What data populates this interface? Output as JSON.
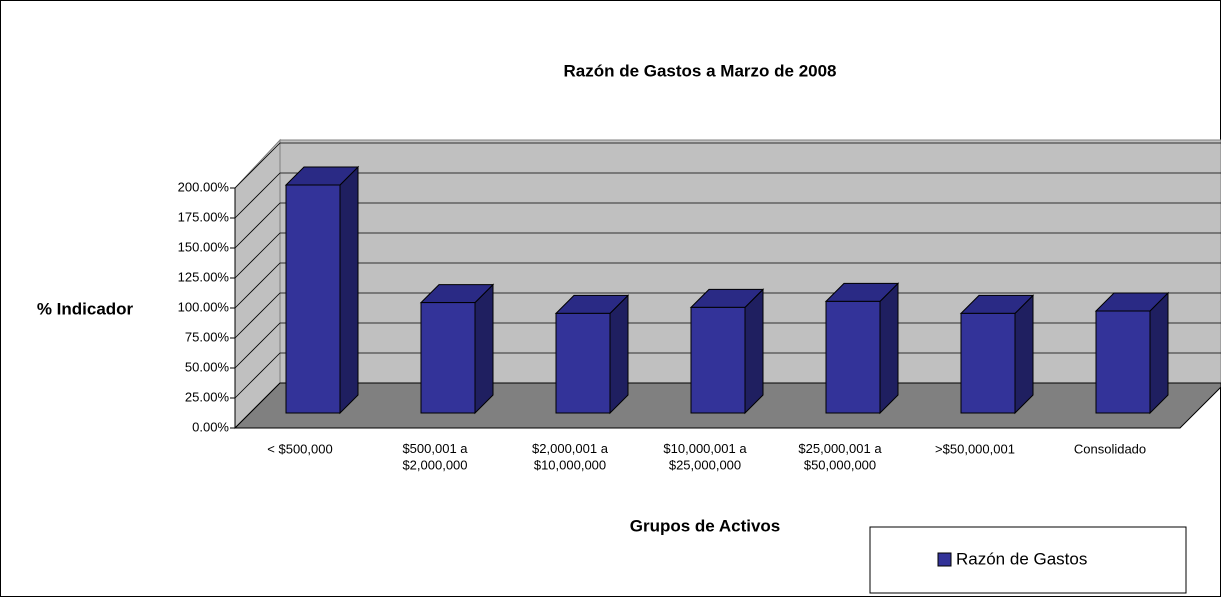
{
  "chart_data": {
    "type": "bar3d",
    "title": "Razón de Gastos a Marzo de 2008",
    "x_label": "Grupos de Activos",
    "y_label": "% Indicador",
    "categories": [
      "< $500,000",
      "$500,001 a\n$2,000,000",
      "$2,000,001 a\n$10,000,000",
      "$10,000,001 a\n$25,000,000",
      "$25,000,001 a\n$50,000,000",
      ">$50,000,001",
      "Consolidado"
    ],
    "series": [
      {
        "name": "Razón de Gastos",
        "color": "#333399",
        "values": [
          190,
          92,
          83,
          88,
          93,
          83,
          85
        ]
      }
    ],
    "ylim": [
      0,
      200
    ],
    "yticks": [
      {
        "value": 0,
        "label": "0.00%"
      },
      {
        "value": 25,
        "label": "25.00%"
      },
      {
        "value": 50,
        "label": "50.00%"
      },
      {
        "value": 75,
        "label": "75.00%"
      },
      {
        "value": 100,
        "label": "100.00%"
      },
      {
        "value": 125,
        "label": "125.00%"
      },
      {
        "value": 150,
        "label": "150.00%"
      },
      {
        "value": 175,
        "label": "175.00%"
      },
      {
        "value": 200,
        "label": "200.00%"
      }
    ],
    "grid": true,
    "legend": "bottom-right"
  }
}
